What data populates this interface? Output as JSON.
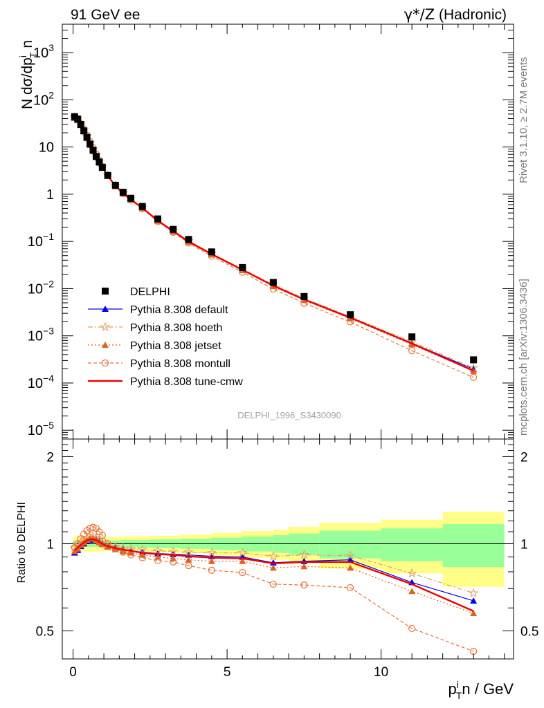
{
  "header": {
    "left_title": "91 GeV ee",
    "right_title_sym": "γ*/Z",
    "right_title_rest": " (Hadronic)"
  },
  "side_labels": {
    "rivet": "Rivet 3.1.10, ≥ 2.7M events",
    "mcplots": "mcplots.cern.ch [arXiv:1306.3436]"
  },
  "chart_data": {
    "type": "line",
    "analysis_label": "DELPHI_1996_S3430090",
    "ylabel_main": "N dσ/dp_T^i n",
    "ylabel_ratio": "Ratio to DELPHI",
    "xlabel": "p_T^i n / GeV",
    "x_range": [
      -0.35,
      14.3
    ],
    "y_range_main": [
      6.5e-06,
      4000
    ],
    "y_scale_main": "log",
    "y_range_ratio": [
      0.4,
      2.3
    ],
    "x_ticks": [
      "0",
      "5",
      "10"
    ],
    "y_ticks_main": [
      "10^-5",
      "10^-4",
      "10^-3",
      "10^-2",
      "10^-1",
      "1",
      "10",
      "10^2",
      "10^3"
    ],
    "y_ticks_ratio": [
      "0.5",
      "1",
      "2"
    ],
    "legend_position": "middle-left",
    "x": [
      0.05,
      0.15,
      0.25,
      0.35,
      0.45,
      0.55,
      0.65,
      0.75,
      0.85,
      0.95,
      1.125,
      1.375,
      1.625,
      1.875,
      2.25,
      2.75,
      3.25,
      3.75,
      4.5,
      5.5,
      6.5,
      7.5,
      9.0,
      11.0,
      13.0
    ],
    "data": {
      "name": "DELPHI",
      "values": [
        44,
        39,
        30,
        22,
        16,
        11.5,
        8.5,
        6.3,
        4.8,
        3.7,
        2.5,
        1.55,
        1.1,
        0.82,
        0.55,
        0.3,
        0.18,
        0.11,
        0.06,
        0.028,
        0.0135,
        0.0068,
        0.0028,
        0.00095,
        0.00031
      ],
      "band_inner_edges": [
        0,
        1,
        1.5,
        2.5,
        3.5,
        4.5,
        5.5,
        6.5,
        7.0,
        8.0,
        10.0,
        12.0,
        14.0
      ],
      "band_inner_halfwidth": [
        0.025,
        0.025,
        0.03,
        0.035,
        0.04,
        0.05,
        0.06,
        0.07,
        0.085,
        0.11,
        0.13,
        0.17
      ],
      "band_outer_halfwidth": [
        0.06,
        0.055,
        0.06,
        0.065,
        0.075,
        0.09,
        0.105,
        0.12,
        0.145,
        0.18,
        0.21,
        0.29
      ]
    },
    "series": [
      {
        "name": "Pythia 8.308 default",
        "color": "#0000ee",
        "dash": "solid",
        "marker": "triangle-filled",
        "ratio": [
          0.93,
          0.95,
          0.98,
          1.0,
          1.02,
          1.03,
          1.04,
          1.035,
          1.02,
          1.0,
          0.98,
          0.965,
          0.955,
          0.945,
          0.935,
          0.925,
          0.92,
          0.915,
          0.905,
          0.9,
          0.86,
          0.87,
          0.88,
          0.735,
          0.635
        ]
      },
      {
        "name": "Pythia 8.308 hoeth",
        "color": "#e0a060",
        "dash": "dashdot",
        "marker": "star-open",
        "ratio": [
          0.97,
          0.99,
          1.01,
          1.03,
          1.05,
          1.06,
          1.065,
          1.05,
          1.03,
          1.01,
          0.995,
          0.975,
          0.965,
          0.96,
          0.955,
          0.945,
          0.94,
          0.935,
          0.93,
          0.93,
          0.905,
          0.915,
          0.91,
          0.79,
          0.675
        ]
      },
      {
        "name": "Pythia 8.308 jetset",
        "color": "#e06020",
        "dash": "dotted",
        "marker": "triangle-filled",
        "ratio": [
          0.94,
          0.96,
          0.99,
          1.01,
          1.03,
          1.04,
          1.04,
          1.03,
          1.01,
          0.995,
          0.975,
          0.955,
          0.94,
          0.93,
          0.915,
          0.9,
          0.89,
          0.88,
          0.87,
          0.87,
          0.825,
          0.835,
          0.825,
          0.685,
          0.575
        ]
      },
      {
        "name": "Pythia 8.308 montull",
        "color": "#e8703a",
        "dash": "dashed",
        "marker": "circle-open",
        "ratio": [
          0.97,
          1.0,
          1.04,
          1.08,
          1.11,
          1.13,
          1.14,
          1.13,
          1.1,
          1.07,
          1.0,
          0.965,
          0.935,
          0.915,
          0.895,
          0.875,
          0.865,
          0.84,
          0.81,
          0.795,
          0.725,
          0.72,
          0.705,
          0.51,
          0.425
        ]
      },
      {
        "name": "Pythia 8.308 tune-cmw",
        "color": "#ee0000",
        "dash": "solid-thick",
        "marker": "none",
        "ratio": [
          0.95,
          0.97,
          0.99,
          1.01,
          1.025,
          1.035,
          1.035,
          1.03,
          1.015,
          1.0,
          0.98,
          0.965,
          0.955,
          0.945,
          0.93,
          0.92,
          0.915,
          0.905,
          0.895,
          0.89,
          0.855,
          0.865,
          0.865,
          0.725,
          0.585
        ]
      }
    ]
  }
}
